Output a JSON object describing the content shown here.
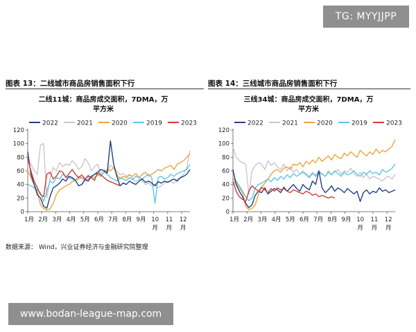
{
  "watermarks": {
    "top": "TG: MYYJJPP",
    "bottom": "www.bodan-league-map.com"
  },
  "figures": [
    {
      "label": "图表 13：二线城市商品房销售面积下行"
    },
    {
      "label": "图表 14：三线城市商品房销售面积下行"
    }
  ],
  "source": "数据来源：  Wind，兴业证券经济与金融研究院整理",
  "colors": {
    "2022": "#1f3f7f",
    "2021": "#c8c8c8",
    "2020": "#f0a33c",
    "2019": "#5cc6e8",
    "2023": "#d23a3a"
  },
  "chart_data": [
    {
      "type": "line",
      "title_line1": "二线11城：商品房成交面积，7DMA，万",
      "title_line2": "平方米",
      "ylim": [
        0,
        120
      ],
      "yticks": [
        0,
        20,
        40,
        60,
        80,
        100,
        120
      ],
      "x_unit": "week",
      "x_range": [
        1,
        52
      ],
      "xticks": [
        {
          "x": 1,
          "l1": "1月",
          "l2": ""
        },
        {
          "x": 5.4,
          "l1": "2月",
          "l2": ""
        },
        {
          "x": 9.8,
          "l1": "3月",
          "l2": ""
        },
        {
          "x": 14.2,
          "l1": "4月",
          "l2": ""
        },
        {
          "x": 18.6,
          "l1": "5月",
          "l2": ""
        },
        {
          "x": 23,
          "l1": "6月",
          "l2": ""
        },
        {
          "x": 27.4,
          "l1": "7月",
          "l2": ""
        },
        {
          "x": 31.8,
          "l1": "8月",
          "l2": ""
        },
        {
          "x": 36.2,
          "l1": "9月",
          "l2": ""
        },
        {
          "x": 40.6,
          "l1": "10",
          "l2": "月"
        },
        {
          "x": 45,
          "l1": "11",
          "l2": "月"
        },
        {
          "x": 49.4,
          "l1": "12",
          "l2": "月"
        }
      ],
      "legend": [
        "2022",
        "2021",
        "2020",
        "2019",
        "2023"
      ],
      "series": [
        {
          "name": "2022",
          "x": [
            1,
            2,
            3,
            4,
            5,
            6,
            7,
            8,
            9,
            10,
            11,
            12,
            13,
            14,
            15,
            16,
            17,
            18,
            19,
            20,
            21,
            22,
            23,
            24,
            25,
            26,
            27,
            28,
            29,
            30,
            31,
            32,
            33,
            34,
            35,
            36,
            37,
            38,
            39,
            40,
            41,
            42,
            43,
            44,
            45,
            46,
            47,
            48,
            49,
            50,
            51,
            52
          ],
          "values": [
            88,
            55,
            40,
            25,
            20,
            8,
            5,
            22,
            35,
            38,
            42,
            48,
            45,
            52,
            50,
            46,
            38,
            40,
            47,
            45,
            52,
            55,
            58,
            62,
            60,
            57,
            104,
            70,
            52,
            38,
            42,
            40,
            45,
            42,
            40,
            45,
            48,
            43,
            45,
            42,
            38,
            44,
            42,
            45,
            43,
            46,
            48,
            45,
            50,
            52,
            55,
            62
          ]
        },
        {
          "name": "2021",
          "x": [
            1,
            2,
            3,
            4,
            5,
            6,
            7,
            8,
            9,
            10,
            11,
            12,
            13,
            14,
            15,
            16,
            17,
            18,
            19,
            20,
            21,
            22,
            23,
            24,
            25,
            26,
            27,
            28,
            29,
            30,
            31,
            32,
            33,
            34,
            35,
            36,
            37,
            38,
            39,
            40,
            41,
            42,
            43,
            44,
            45,
            46,
            47,
            48,
            49,
            50,
            51,
            52
          ],
          "values": [
            75,
            70,
            60,
            55,
            98,
            100,
            20,
            48,
            65,
            60,
            72,
            66,
            70,
            68,
            75,
            70,
            62,
            66,
            78,
            72,
            60,
            66,
            70,
            55,
            62,
            58,
            68,
            65,
            60,
            54,
            56,
            52,
            55,
            48,
            44,
            48,
            45,
            40,
            42,
            38,
            40,
            35,
            38,
            42,
            45,
            44,
            42,
            48,
            50,
            55,
            65,
            90
          ]
        },
        {
          "name": "2020",
          "x": [
            1,
            2,
            3,
            4,
            5,
            6,
            7,
            8,
            9,
            10,
            11,
            12,
            13,
            14,
            15,
            16,
            17,
            18,
            19,
            20,
            21,
            22,
            23,
            24,
            25,
            26,
            27,
            28,
            29,
            30,
            31,
            32,
            33,
            34,
            35,
            36,
            37,
            38,
            39,
            40,
            41,
            42,
            43,
            44,
            45,
            46,
            47,
            48,
            49,
            50,
            51,
            52
          ],
          "values": [
            60,
            50,
            40,
            30,
            10,
            5,
            2,
            4,
            12,
            25,
            32,
            35,
            38,
            40,
            44,
            46,
            48,
            50,
            46,
            48,
            52,
            50,
            54,
            52,
            58,
            62,
            60,
            65,
            55,
            48,
            52,
            50,
            54,
            52,
            56,
            50,
            55,
            58,
            52,
            55,
            58,
            62,
            60,
            64,
            66,
            68,
            62,
            70,
            72,
            75,
            80,
            85
          ]
        },
        {
          "name": "2019",
          "x": [
            1,
            2,
            3,
            4,
            5,
            6,
            7,
            8,
            9,
            10,
            11,
            12,
            13,
            14,
            15,
            16,
            17,
            18,
            19,
            20,
            21,
            22,
            23,
            24,
            25,
            26,
            27,
            28,
            29,
            30,
            31,
            32,
            33,
            34,
            35,
            36,
            37,
            38,
            39,
            40,
            41,
            42,
            43,
            44,
            45,
            46,
            47,
            48,
            49,
            50,
            51,
            52
          ],
          "values": [
            40,
            38,
            35,
            32,
            28,
            15,
            30,
            45,
            42,
            50,
            48,
            55,
            52,
            50,
            48,
            46,
            52,
            50,
            48,
            54,
            50,
            55,
            56,
            52,
            58,
            55,
            50,
            48,
            45,
            50,
            48,
            46,
            50,
            47,
            52,
            50,
            48,
            52,
            55,
            50,
            12,
            50,
            52,
            48,
            50,
            55,
            52,
            56,
            58,
            60,
            62,
            70
          ]
        },
        {
          "name": "2023",
          "x": [
            1,
            2,
            3,
            4,
            5,
            6,
            7,
            8,
            9,
            10,
            11,
            12,
            13,
            14,
            15,
            16,
            17,
            18,
            19,
            20,
            21,
            22,
            23,
            24,
            25,
            26,
            27,
            28,
            29,
            30
          ],
          "values": [
            78,
            60,
            45,
            35,
            25,
            22,
            55,
            58,
            48,
            52,
            60,
            58,
            50,
            56,
            62,
            55,
            50,
            54,
            48,
            52,
            50,
            46,
            58,
            54,
            50,
            46,
            44,
            42,
            40,
            38
          ]
        }
      ]
    },
    {
      "type": "line",
      "title_line1": "三线34城：商品房成交面积，7DMA，万",
      "title_line2": "平方米",
      "ylim": [
        0,
        120
      ],
      "yticks": [
        0,
        20,
        40,
        60,
        80,
        100,
        120
      ],
      "x_unit": "week",
      "x_range": [
        1,
        52
      ],
      "xticks": [
        {
          "x": 1,
          "l1": "1月",
          "l2": ""
        },
        {
          "x": 5.4,
          "l1": "2月",
          "l2": ""
        },
        {
          "x": 9.8,
          "l1": "3月",
          "l2": ""
        },
        {
          "x": 14.2,
          "l1": "4月",
          "l2": ""
        },
        {
          "x": 18.6,
          "l1": "5月",
          "l2": ""
        },
        {
          "x": 23,
          "l1": "6月",
          "l2": ""
        },
        {
          "x": 27.4,
          "l1": "7月",
          "l2": ""
        },
        {
          "x": 31.8,
          "l1": "8月",
          "l2": ""
        },
        {
          "x": 36.2,
          "l1": "9月",
          "l2": ""
        },
        {
          "x": 40.6,
          "l1": "10",
          "l2": "月"
        },
        {
          "x": 45,
          "l1": "11",
          "l2": "月"
        },
        {
          "x": 49.4,
          "l1": "12",
          "l2": "月"
        }
      ],
      "legend": [
        "2022",
        "2021",
        "2020",
        "2019",
        "2023"
      ],
      "series": [
        {
          "name": "2022",
          "x": [
            1,
            2,
            3,
            4,
            5,
            6,
            7,
            8,
            9,
            10,
            11,
            12,
            13,
            14,
            15,
            16,
            17,
            18,
            19,
            20,
            21,
            22,
            23,
            24,
            25,
            26,
            27,
            28,
            29,
            30,
            31,
            32,
            33,
            34,
            35,
            36,
            37,
            38,
            39,
            40,
            41,
            42,
            43,
            44,
            45,
            46,
            47,
            48,
            49,
            50,
            51,
            52
          ],
          "values": [
            62,
            40,
            30,
            22,
            12,
            6,
            10,
            24,
            30,
            28,
            35,
            26,
            30,
            34,
            32,
            28,
            36,
            30,
            35,
            40,
            34,
            30,
            40,
            35,
            32,
            45,
            40,
            60,
            35,
            28,
            32,
            38,
            30,
            35,
            32,
            28,
            34,
            30,
            26,
            30,
            15,
            28,
            32,
            26,
            30,
            28,
            35,
            30,
            32,
            28,
            30,
            32
          ]
        },
        {
          "name": "2021",
          "x": [
            1,
            2,
            3,
            4,
            5,
            6,
            7,
            8,
            9,
            10,
            11,
            12,
            13,
            14,
            15,
            16,
            17,
            18,
            19,
            20,
            21,
            22,
            23,
            24,
            25,
            26,
            27,
            28,
            29,
            30,
            31,
            32,
            33,
            34,
            35,
            36,
            37,
            38,
            39,
            40,
            41,
            42,
            43,
            44,
            45,
            46,
            47,
            48,
            49,
            50,
            51,
            52
          ],
          "values": [
            95,
            80,
            75,
            72,
            70,
            25,
            60,
            68,
            72,
            70,
            62,
            75,
            68,
            72,
            66,
            62,
            70,
            60,
            66,
            58,
            62,
            55,
            60,
            56,
            52,
            58,
            54,
            60,
            56,
            52,
            60,
            55,
            58,
            62,
            55,
            60,
            58,
            64,
            56,
            52,
            58,
            50,
            55,
            48,
            52,
            50,
            48,
            45,
            50,
            52,
            48,
            55
          ]
        },
        {
          "name": "2020",
          "x": [
            1,
            2,
            3,
            4,
            5,
            6,
            7,
            8,
            9,
            10,
            11,
            12,
            13,
            14,
            15,
            16,
            17,
            18,
            19,
            20,
            21,
            22,
            23,
            24,
            25,
            26,
            27,
            28,
            29,
            30,
            31,
            32,
            33,
            34,
            35,
            36,
            37,
            38,
            39,
            40,
            41,
            42,
            43,
            44,
            45,
            46,
            47,
            48,
            49,
            50,
            51,
            52
          ],
          "values": [
            50,
            42,
            35,
            28,
            8,
            3,
            5,
            10,
            25,
            35,
            42,
            48,
            55,
            60,
            62,
            58,
            64,
            66,
            62,
            70,
            68,
            72,
            66,
            74,
            70,
            76,
            72,
            80,
            74,
            78,
            82,
            76,
            84,
            80,
            78,
            86,
            82,
            88,
            84,
            80,
            90,
            86,
            82,
            88,
            84,
            92,
            86,
            90,
            88,
            92,
            96,
            106
          ]
        },
        {
          "name": "2019",
          "x": [
            1,
            2,
            3,
            4,
            5,
            6,
            7,
            8,
            9,
            10,
            11,
            12,
            13,
            14,
            15,
            16,
            17,
            18,
            19,
            20,
            21,
            22,
            23,
            24,
            25,
            26,
            27,
            28,
            29,
            30,
            31,
            32,
            33,
            34,
            35,
            36,
            37,
            38,
            39,
            40,
            41,
            42,
            43,
            44,
            45,
            46,
            47,
            48,
            49,
            50,
            51,
            52
          ],
          "values": [
            40,
            45,
            38,
            30,
            22,
            16,
            20,
            35,
            40,
            42,
            45,
            48,
            44,
            50,
            46,
            52,
            48,
            54,
            50,
            56,
            52,
            55,
            58,
            54,
            50,
            56,
            52,
            58,
            55,
            52,
            58,
            54,
            60,
            56,
            52,
            58,
            54,
            56,
            60,
            55,
            52,
            58,
            55,
            60,
            56,
            58,
            54,
            62,
            58,
            60,
            64,
            70
          ]
        },
        {
          "name": "2023",
          "x": [
            1,
            2,
            3,
            4,
            5,
            6,
            7,
            8,
            9,
            10,
            11,
            12,
            13,
            14,
            15,
            16,
            17,
            18,
            19,
            20,
            21,
            22,
            23,
            24,
            25,
            26,
            27,
            28,
            29,
            30,
            31,
            32,
            33
          ],
          "values": [
            45,
            30,
            22,
            18,
            15,
            30,
            38,
            34,
            30,
            36,
            32,
            28,
            34,
            30,
            35,
            32,
            34,
            30,
            28,
            32,
            30,
            28,
            26,
            30,
            28,
            24,
            26,
            22,
            24,
            22,
            20,
            22,
            20
          ]
        }
      ]
    }
  ]
}
